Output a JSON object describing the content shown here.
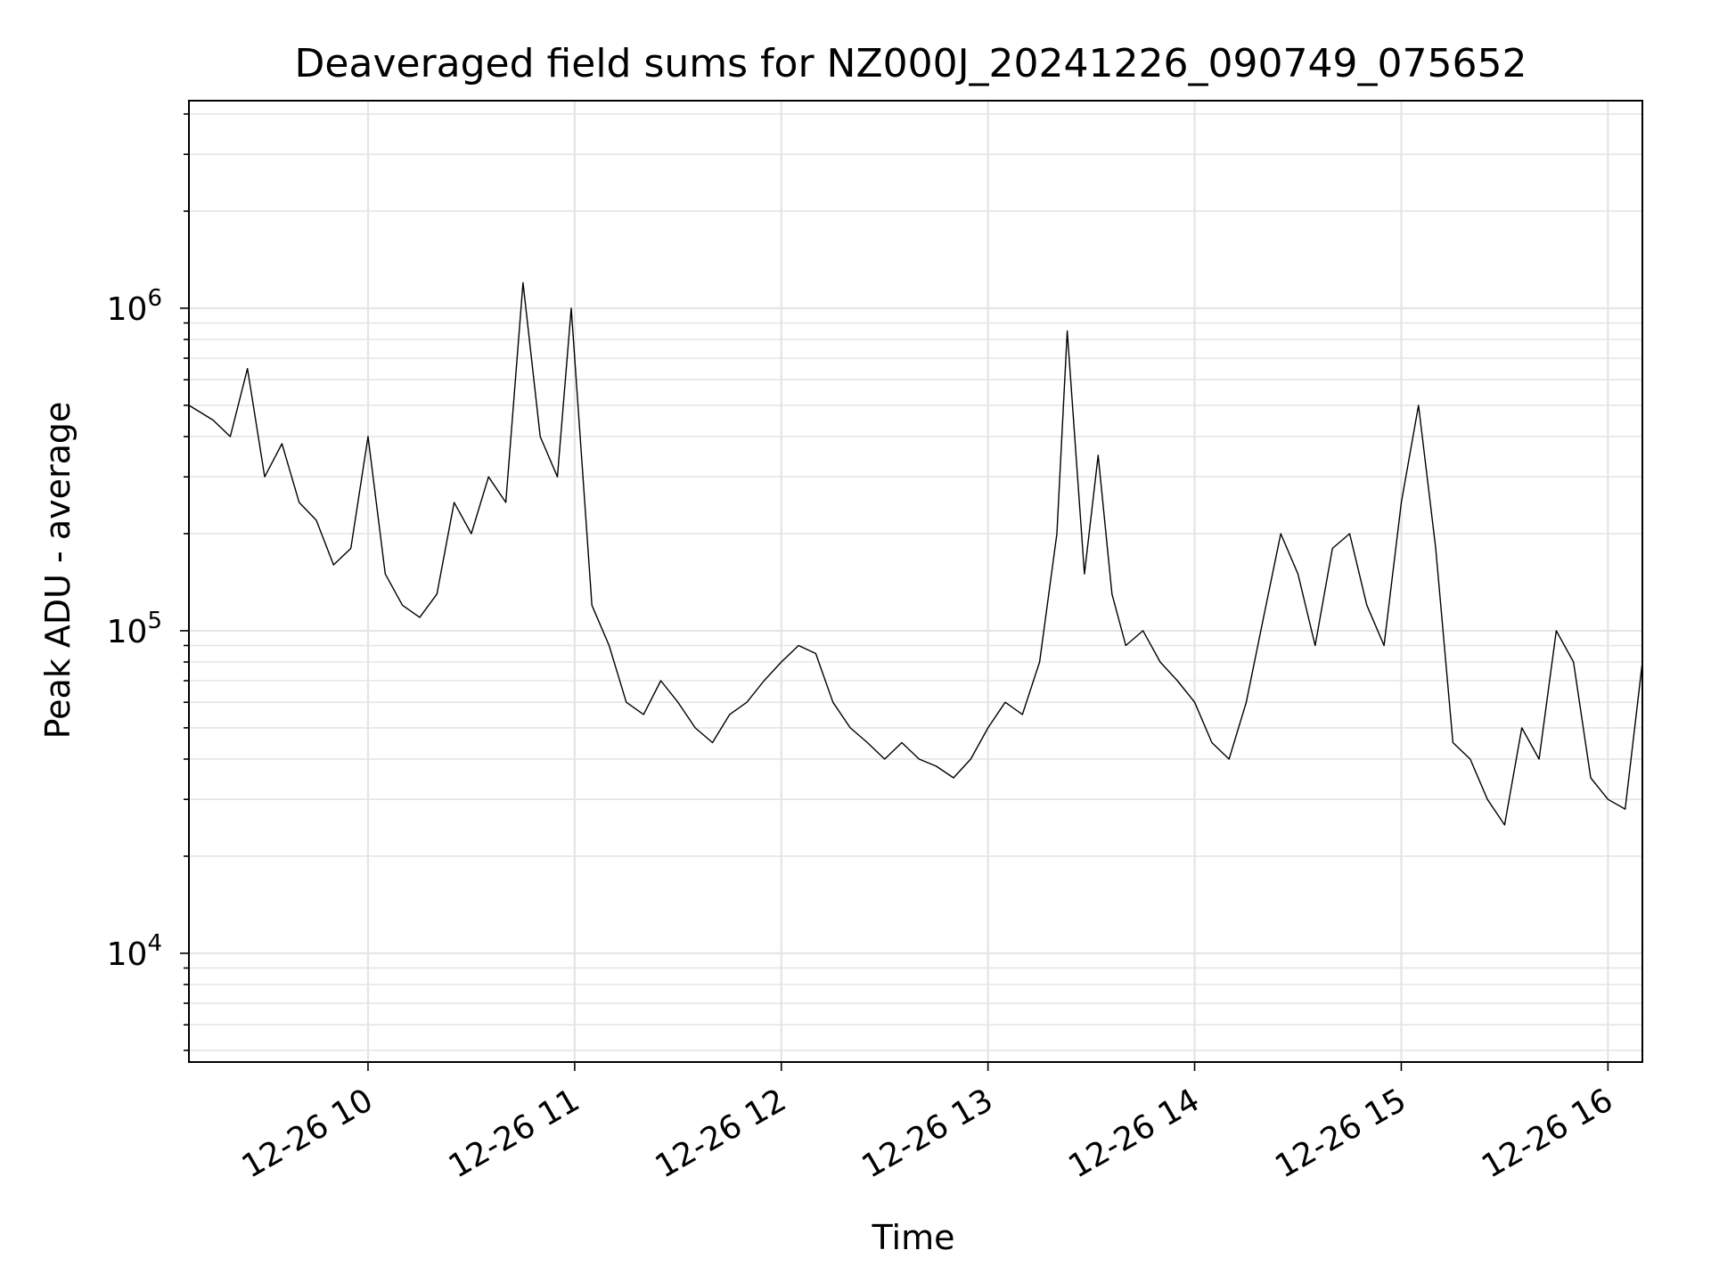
{
  "chart_data": {
    "type": "line",
    "title": "Deaveraged field sums for NZ000J_20241226_090749_075652",
    "xlabel": "Time",
    "ylabel": "Peak ADU - average",
    "yscale": "log",
    "grid": true,
    "grid_minor": true,
    "legend": "none",
    "line_color": "#000000",
    "grid_color": "#e5e5e5",
    "xlim": [
      "2024-12-26 09:08",
      "2024-12-26 16:10"
    ],
    "ylim": [
      4600,
      4400000
    ],
    "xticks": [
      {
        "at": "2024-12-26 10:00",
        "label": "12-26 10"
      },
      {
        "at": "2024-12-26 11:00",
        "label": "12-26 11"
      },
      {
        "at": "2024-12-26 12:00",
        "label": "12-26 12"
      },
      {
        "at": "2024-12-26 13:00",
        "label": "12-26 13"
      },
      {
        "at": "2024-12-26 14:00",
        "label": "12-26 14"
      },
      {
        "at": "2024-12-26 15:00",
        "label": "12-26 15"
      },
      {
        "at": "2024-12-26 16:00",
        "label": "12-26 16"
      }
    ],
    "yticks": [
      {
        "value": 10000,
        "label": "10",
        "exponent": "4"
      },
      {
        "value": 100000,
        "label": "10",
        "exponent": "5"
      },
      {
        "value": 1000000,
        "label": "10",
        "exponent": "6"
      }
    ],
    "series": [
      {
        "x": [
          "2024-12-26 09:08",
          "2024-12-26 09:15",
          "2024-12-26 09:20",
          "2024-12-26 09:25",
          "2024-12-26 09:30",
          "2024-12-26 09:35",
          "2024-12-26 09:40",
          "2024-12-26 09:45",
          "2024-12-26 09:50",
          "2024-12-26 09:55",
          "2024-12-26 10:00",
          "2024-12-26 10:05",
          "2024-12-26 10:10",
          "2024-12-26 10:15",
          "2024-12-26 10:20",
          "2024-12-26 10:25",
          "2024-12-26 10:30",
          "2024-12-26 10:35",
          "2024-12-26 10:40",
          "2024-12-26 10:45",
          "2024-12-26 10:50",
          "2024-12-26 10:55",
          "2024-12-26 10:59",
          "2024-12-26 11:05",
          "2024-12-26 11:10",
          "2024-12-26 11:15",
          "2024-12-26 11:20",
          "2024-12-26 11:25",
          "2024-12-26 11:30",
          "2024-12-26 11:35",
          "2024-12-26 11:40",
          "2024-12-26 11:45",
          "2024-12-26 11:50",
          "2024-12-26 11:55",
          "2024-12-26 12:00",
          "2024-12-26 12:05",
          "2024-12-26 12:10",
          "2024-12-26 12:15",
          "2024-12-26 12:20",
          "2024-12-26 12:25",
          "2024-12-26 12:30",
          "2024-12-26 12:35",
          "2024-12-26 12:40",
          "2024-12-26 12:45",
          "2024-12-26 12:50",
          "2024-12-26 12:55",
          "2024-12-26 13:00",
          "2024-12-26 13:05",
          "2024-12-26 13:10",
          "2024-12-26 13:15",
          "2024-12-26 13:20",
          "2024-12-26 13:23",
          "2024-12-26 13:28",
          "2024-12-26 13:32",
          "2024-12-26 13:36",
          "2024-12-26 13:40",
          "2024-12-26 13:45",
          "2024-12-26 13:50",
          "2024-12-26 13:55",
          "2024-12-26 14:00",
          "2024-12-26 14:05",
          "2024-12-26 14:10",
          "2024-12-26 14:15",
          "2024-12-26 14:20",
          "2024-12-26 14:25",
          "2024-12-26 14:30",
          "2024-12-26 14:35",
          "2024-12-26 14:40",
          "2024-12-26 14:45",
          "2024-12-26 14:50",
          "2024-12-26 14:55",
          "2024-12-26 15:00",
          "2024-12-26 15:05",
          "2024-12-26 15:10",
          "2024-12-26 15:15",
          "2024-12-26 15:20",
          "2024-12-26 15:25",
          "2024-12-26 15:30",
          "2024-12-26 15:35",
          "2024-12-26 15:40",
          "2024-12-26 15:45",
          "2024-12-26 15:50",
          "2024-12-26 15:55",
          "2024-12-26 16:00",
          "2024-12-26 16:05",
          "2024-12-26 16:10"
        ],
        "y": [
          500000,
          450000,
          400000,
          650000,
          300000,
          380000,
          250000,
          220000,
          160000,
          180000,
          400000,
          150000,
          120000,
          110000,
          130000,
          250000,
          200000,
          300000,
          250000,
          1200000,
          400000,
          300000,
          1000000,
          120000,
          90000,
          60000,
          55000,
          70000,
          60000,
          50000,
          45000,
          55000,
          60000,
          70000,
          80000,
          90000,
          85000,
          60000,
          50000,
          45000,
          40000,
          45000,
          40000,
          38000,
          35000,
          40000,
          50000,
          60000,
          55000,
          80000,
          200000,
          850000,
          150000,
          350000,
          130000,
          90000,
          100000,
          80000,
          70000,
          60000,
          45000,
          40000,
          60000,
          110000,
          200000,
          150000,
          90000,
          180000,
          200000,
          120000,
          90000,
          250000,
          500000,
          180000,
          45000,
          40000,
          30000,
          25000,
          50000,
          40000,
          100000,
          80000,
          35000,
          30000,
          28000,
          80000
        ]
      }
    ]
  }
}
